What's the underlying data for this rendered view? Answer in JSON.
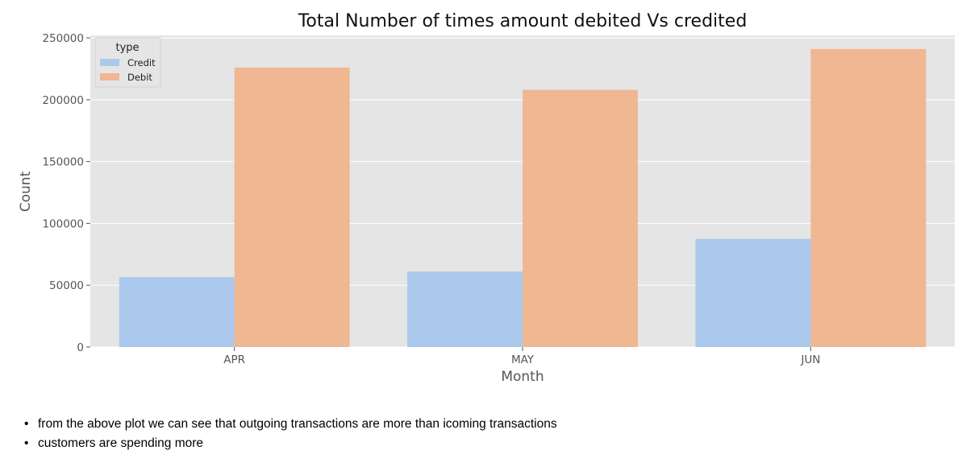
{
  "chart_data": {
    "type": "bar",
    "title": "Total Number of times amount debited Vs credited",
    "xlabel": "Month",
    "ylabel": "Count",
    "categories": [
      "APR",
      "MAY",
      "JUN"
    ],
    "series": [
      {
        "name": "Credit",
        "values": [
          56500,
          61000,
          87500
        ],
        "color": "#abc9ec"
      },
      {
        "name": "Debit",
        "values": [
          226000,
          208000,
          241000
        ],
        "color": "#f0b793"
      }
    ],
    "ylim": [
      0,
      252000
    ],
    "yticks": [
      0,
      50000,
      100000,
      150000,
      200000,
      250000
    ],
    "grid": true,
    "legend": {
      "title": "type",
      "position": "top-left"
    },
    "background_color": "#e5e5e5"
  },
  "notes": [
    "from the above plot we can see that outgoing transactions are more than icoming transactions",
    "customers are spending more"
  ]
}
